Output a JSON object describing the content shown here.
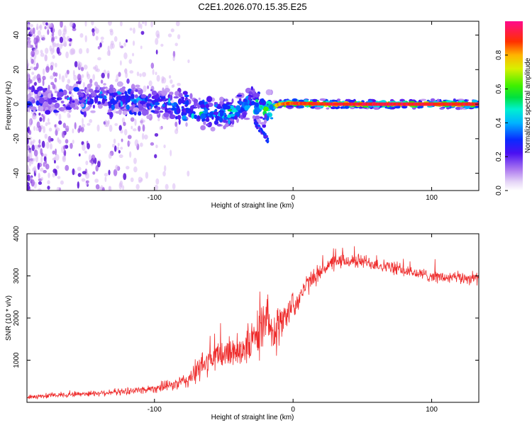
{
  "title": "C2E1.2026.070.15.35.E25",
  "colors": {
    "line": "#ee2a2a",
    "frame": "#000000",
    "scatter_light": "#d8b8f4",
    "scatter_mid": "#9a52e6",
    "scatter_dark": "#5a10d8"
  },
  "chart_data": [
    {
      "name": "spectrogram",
      "type": "heatmap",
      "xlabel": "Height of straight line (km)",
      "ylabel": "Frequency (Hz)",
      "xlim": [
        -192,
        134
      ],
      "ylim": [
        -50,
        48
      ],
      "xticks": [
        -100,
        0,
        100
      ],
      "xtick_labels": [
        "-100",
        "0",
        "100"
      ],
      "yticks": [
        -40,
        -20,
        0,
        20,
        40
      ],
      "ytick_labels": [
        "-40",
        "-20",
        "0",
        "20",
        "40"
      ],
      "grid": false,
      "colorbar": {
        "label": "Normalized spectral amplitude",
        "range": [
          0,
          1
        ],
        "ticks": [
          0.0,
          0.2,
          0.4,
          0.6,
          0.8
        ],
        "tick_labels": [
          "0.0",
          "0.2",
          "0.4",
          "0.6",
          "0.8"
        ]
      },
      "ridge": [
        {
          "x": -185,
          "f": 1.5,
          "amp": 0.15
        },
        {
          "x": -170,
          "f": 2.5,
          "amp": 0.22
        },
        {
          "x": -150,
          "f": 3.0,
          "amp": 0.28
        },
        {
          "x": -130,
          "f": 3.0,
          "amp": 0.3
        },
        {
          "x": -110,
          "f": 2.0,
          "amp": 0.32
        },
        {
          "x": -90,
          "f": 0.0,
          "amp": 0.35
        },
        {
          "x": -75,
          "f": -3.0,
          "amp": 0.4
        },
        {
          "x": -60,
          "f": -6.0,
          "amp": 0.38
        },
        {
          "x": -45,
          "f": -5.0,
          "amp": 0.42
        },
        {
          "x": -30,
          "f": 0.0,
          "amp": 0.45
        },
        {
          "x": -20,
          "f": -3.0,
          "amp": 0.5
        },
        {
          "x": -10,
          "f": 0.0,
          "amp": 0.85
        },
        {
          "x": 0,
          "f": 0.5,
          "amp": 0.92
        },
        {
          "x": 30,
          "f": 0.0,
          "amp": 0.97
        },
        {
          "x": 60,
          "f": 0.0,
          "amp": 0.98
        },
        {
          "x": 90,
          "f": 0.0,
          "amp": 0.97
        },
        {
          "x": 134,
          "f": 0.0,
          "amp": 0.96
        }
      ],
      "scatter_extent_x_max": -75,
      "tail": {
        "x": [
          -28,
          -18
        ],
        "f": [
          -10,
          -21
        ]
      }
    },
    {
      "name": "snr",
      "type": "line",
      "xlabel": "Height of straight line (km)",
      "ylabel": "SNR (10 * v/v)",
      "xlim": [
        -192,
        134
      ],
      "ylim": [
        0,
        4000
      ],
      "xticks": [
        -100,
        0,
        100
      ],
      "xtick_labels": [
        "-100",
        "0",
        "100"
      ],
      "yticks": [
        1000,
        2000,
        3000,
        4000
      ],
      "ytick_labels": [
        "1000",
        "2000",
        "3000",
        "4000"
      ],
      "grid": false,
      "series": [
        {
          "name": "SNR",
          "x": [
            -192,
            -180,
            -160,
            -140,
            -120,
            -100,
            -85,
            -78,
            -72,
            -66,
            -60,
            -50,
            -40,
            -32,
            -26,
            -22,
            -16,
            -12,
            -8,
            -3,
            0,
            4,
            8,
            12,
            18,
            25,
            35,
            50,
            70,
            90,
            110,
            134
          ],
          "mean": [
            120,
            150,
            190,
            220,
            260,
            330,
            420,
            500,
            640,
            850,
            1000,
            1150,
            1250,
            1350,
            1600,
            1750,
            1900,
            1700,
            1900,
            2200,
            2300,
            2450,
            2700,
            2850,
            3050,
            3250,
            3350,
            3350,
            3200,
            3050,
            2950,
            2950
          ],
          "noise": [
            60,
            70,
            80,
            90,
            100,
            130,
            170,
            250,
            330,
            420,
            450,
            480,
            520,
            560,
            720,
            800,
            760,
            700,
            520,
            420,
            380,
            340,
            320,
            300,
            260,
            240,
            220,
            210,
            190,
            180,
            180,
            190
          ]
        }
      ]
    }
  ]
}
